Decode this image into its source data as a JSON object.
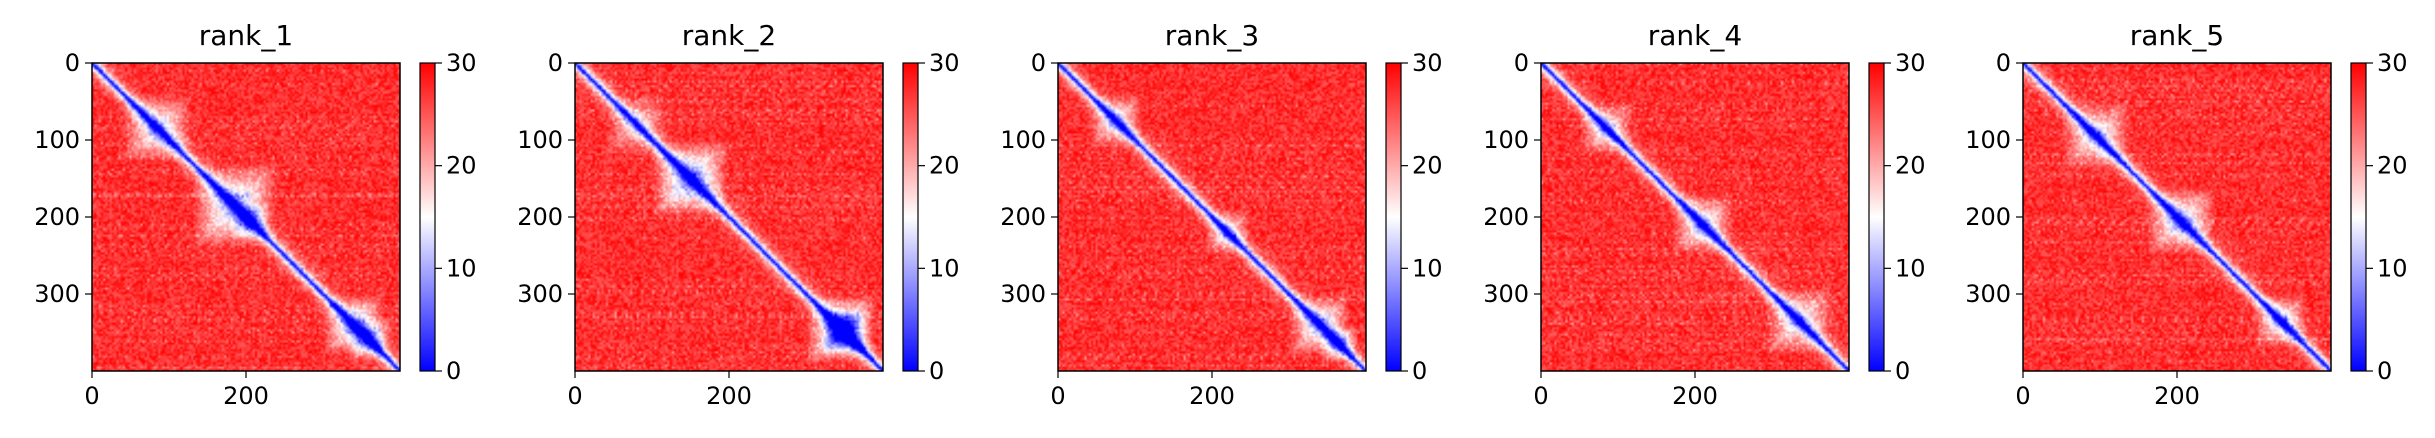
{
  "figure": {
    "panel_count": 5,
    "colormap": {
      "low": "#0000ff",
      "mid": "#ffffff",
      "high": "#ff0000"
    }
  },
  "chart_data": [
    {
      "type": "heatmap",
      "title": "rank_1",
      "matrix_size": 400,
      "xlim": [
        0,
        400
      ],
      "ylim": [
        400,
        0
      ],
      "x_ticks": [
        "0",
        "200"
      ],
      "y_ticks": [
        "0",
        "100",
        "200",
        "300"
      ],
      "x_tick_values": [
        0,
        200
      ],
      "y_tick_values": [
        0,
        100,
        200,
        300
      ],
      "colorbar": {
        "min": 0,
        "max": 30,
        "ticks": [
          "0",
          "10",
          "20",
          "30"
        ],
        "tick_values": [
          0,
          10,
          20,
          30
        ]
      },
      "description_values": {
        "diagonal": 0,
        "background": 30
      },
      "low_error_blocks": [
        [
          40,
          130,
          0.6
        ],
        [
          130,
          240,
          0.75
        ],
        [
          180,
          230,
          0.5
        ],
        [
          300,
          380,
          0.7
        ],
        [
          330,
          390,
          0.6
        ]
      ]
    },
    {
      "type": "heatmap",
      "title": "rank_2",
      "matrix_size": 400,
      "xlim": [
        0,
        400
      ],
      "ylim": [
        400,
        0
      ],
      "x_ticks": [
        "0",
        "200"
      ],
      "y_ticks": [
        "0",
        "100",
        "200",
        "300"
      ],
      "x_tick_values": [
        0,
        200
      ],
      "y_tick_values": [
        0,
        100,
        200,
        300
      ],
      "colorbar": {
        "min": 0,
        "max": 30,
        "ticks": [
          "0",
          "10",
          "20",
          "30"
        ],
        "tick_values": [
          0,
          10,
          20,
          30
        ]
      },
      "description_values": {
        "diagonal": 0,
        "background": 30
      },
      "low_error_blocks": [
        [
          100,
          200,
          0.8
        ],
        [
          40,
          120,
          0.4
        ],
        [
          300,
          390,
          0.85
        ],
        [
          320,
          380,
          0.7
        ]
      ]
    },
    {
      "type": "heatmap",
      "title": "rank_3",
      "matrix_size": 400,
      "xlim": [
        0,
        400
      ],
      "ylim": [
        400,
        0
      ],
      "x_ticks": [
        "0",
        "200"
      ],
      "y_ticks": [
        "0",
        "100",
        "200",
        "300"
      ],
      "x_tick_values": [
        0,
        200
      ],
      "y_tick_values": [
        0,
        100,
        200,
        300
      ],
      "colorbar": {
        "min": 0,
        "max": 30,
        "ticks": [
          "0",
          "10",
          "20",
          "30"
        ],
        "tick_values": [
          0,
          10,
          20,
          30
        ]
      },
      "description_values": {
        "diagonal": 0,
        "background": 30
      },
      "low_error_blocks": [
        [
          40,
          110,
          0.55
        ],
        [
          190,
          250,
          0.5
        ],
        [
          300,
          380,
          0.65
        ],
        [
          340,
          390,
          0.6
        ]
      ]
    },
    {
      "type": "heatmap",
      "title": "rank_4",
      "matrix_size": 400,
      "xlim": [
        0,
        400
      ],
      "ylim": [
        400,
        0
      ],
      "x_ticks": [
        "0",
        "200"
      ],
      "y_ticks": [
        "0",
        "100",
        "200",
        "300"
      ],
      "x_tick_values": [
        0,
        200
      ],
      "y_tick_values": [
        0,
        100,
        200,
        300
      ],
      "colorbar": {
        "min": 0,
        "max": 30,
        "ticks": [
          "0",
          "10",
          "20",
          "30"
        ],
        "tick_values": [
          0,
          10,
          20,
          30
        ]
      },
      "description_values": {
        "diagonal": 0,
        "background": 30
      },
      "low_error_blocks": [
        [
          50,
          120,
          0.5
        ],
        [
          170,
          250,
          0.6
        ],
        [
          290,
          380,
          0.55
        ]
      ]
    },
    {
      "type": "heatmap",
      "title": "rank_5",
      "matrix_size": 400,
      "xlim": [
        0,
        400
      ],
      "ylim": [
        400,
        0
      ],
      "x_ticks": [
        "0",
        "200"
      ],
      "y_ticks": [
        "0",
        "100",
        "200",
        "300"
      ],
      "x_tick_values": [
        0,
        200
      ],
      "y_tick_values": [
        0,
        100,
        200,
        300
      ],
      "colorbar": {
        "min": 0,
        "max": 30,
        "ticks": [
          "0",
          "10",
          "20",
          "30"
        ],
        "tick_values": [
          0,
          10,
          20,
          30
        ]
      },
      "description_values": {
        "diagonal": 0,
        "background": 30
      },
      "low_error_blocks": [
        [
          50,
          140,
          0.55
        ],
        [
          160,
          250,
          0.65
        ],
        [
          300,
          370,
          0.55
        ]
      ]
    }
  ]
}
